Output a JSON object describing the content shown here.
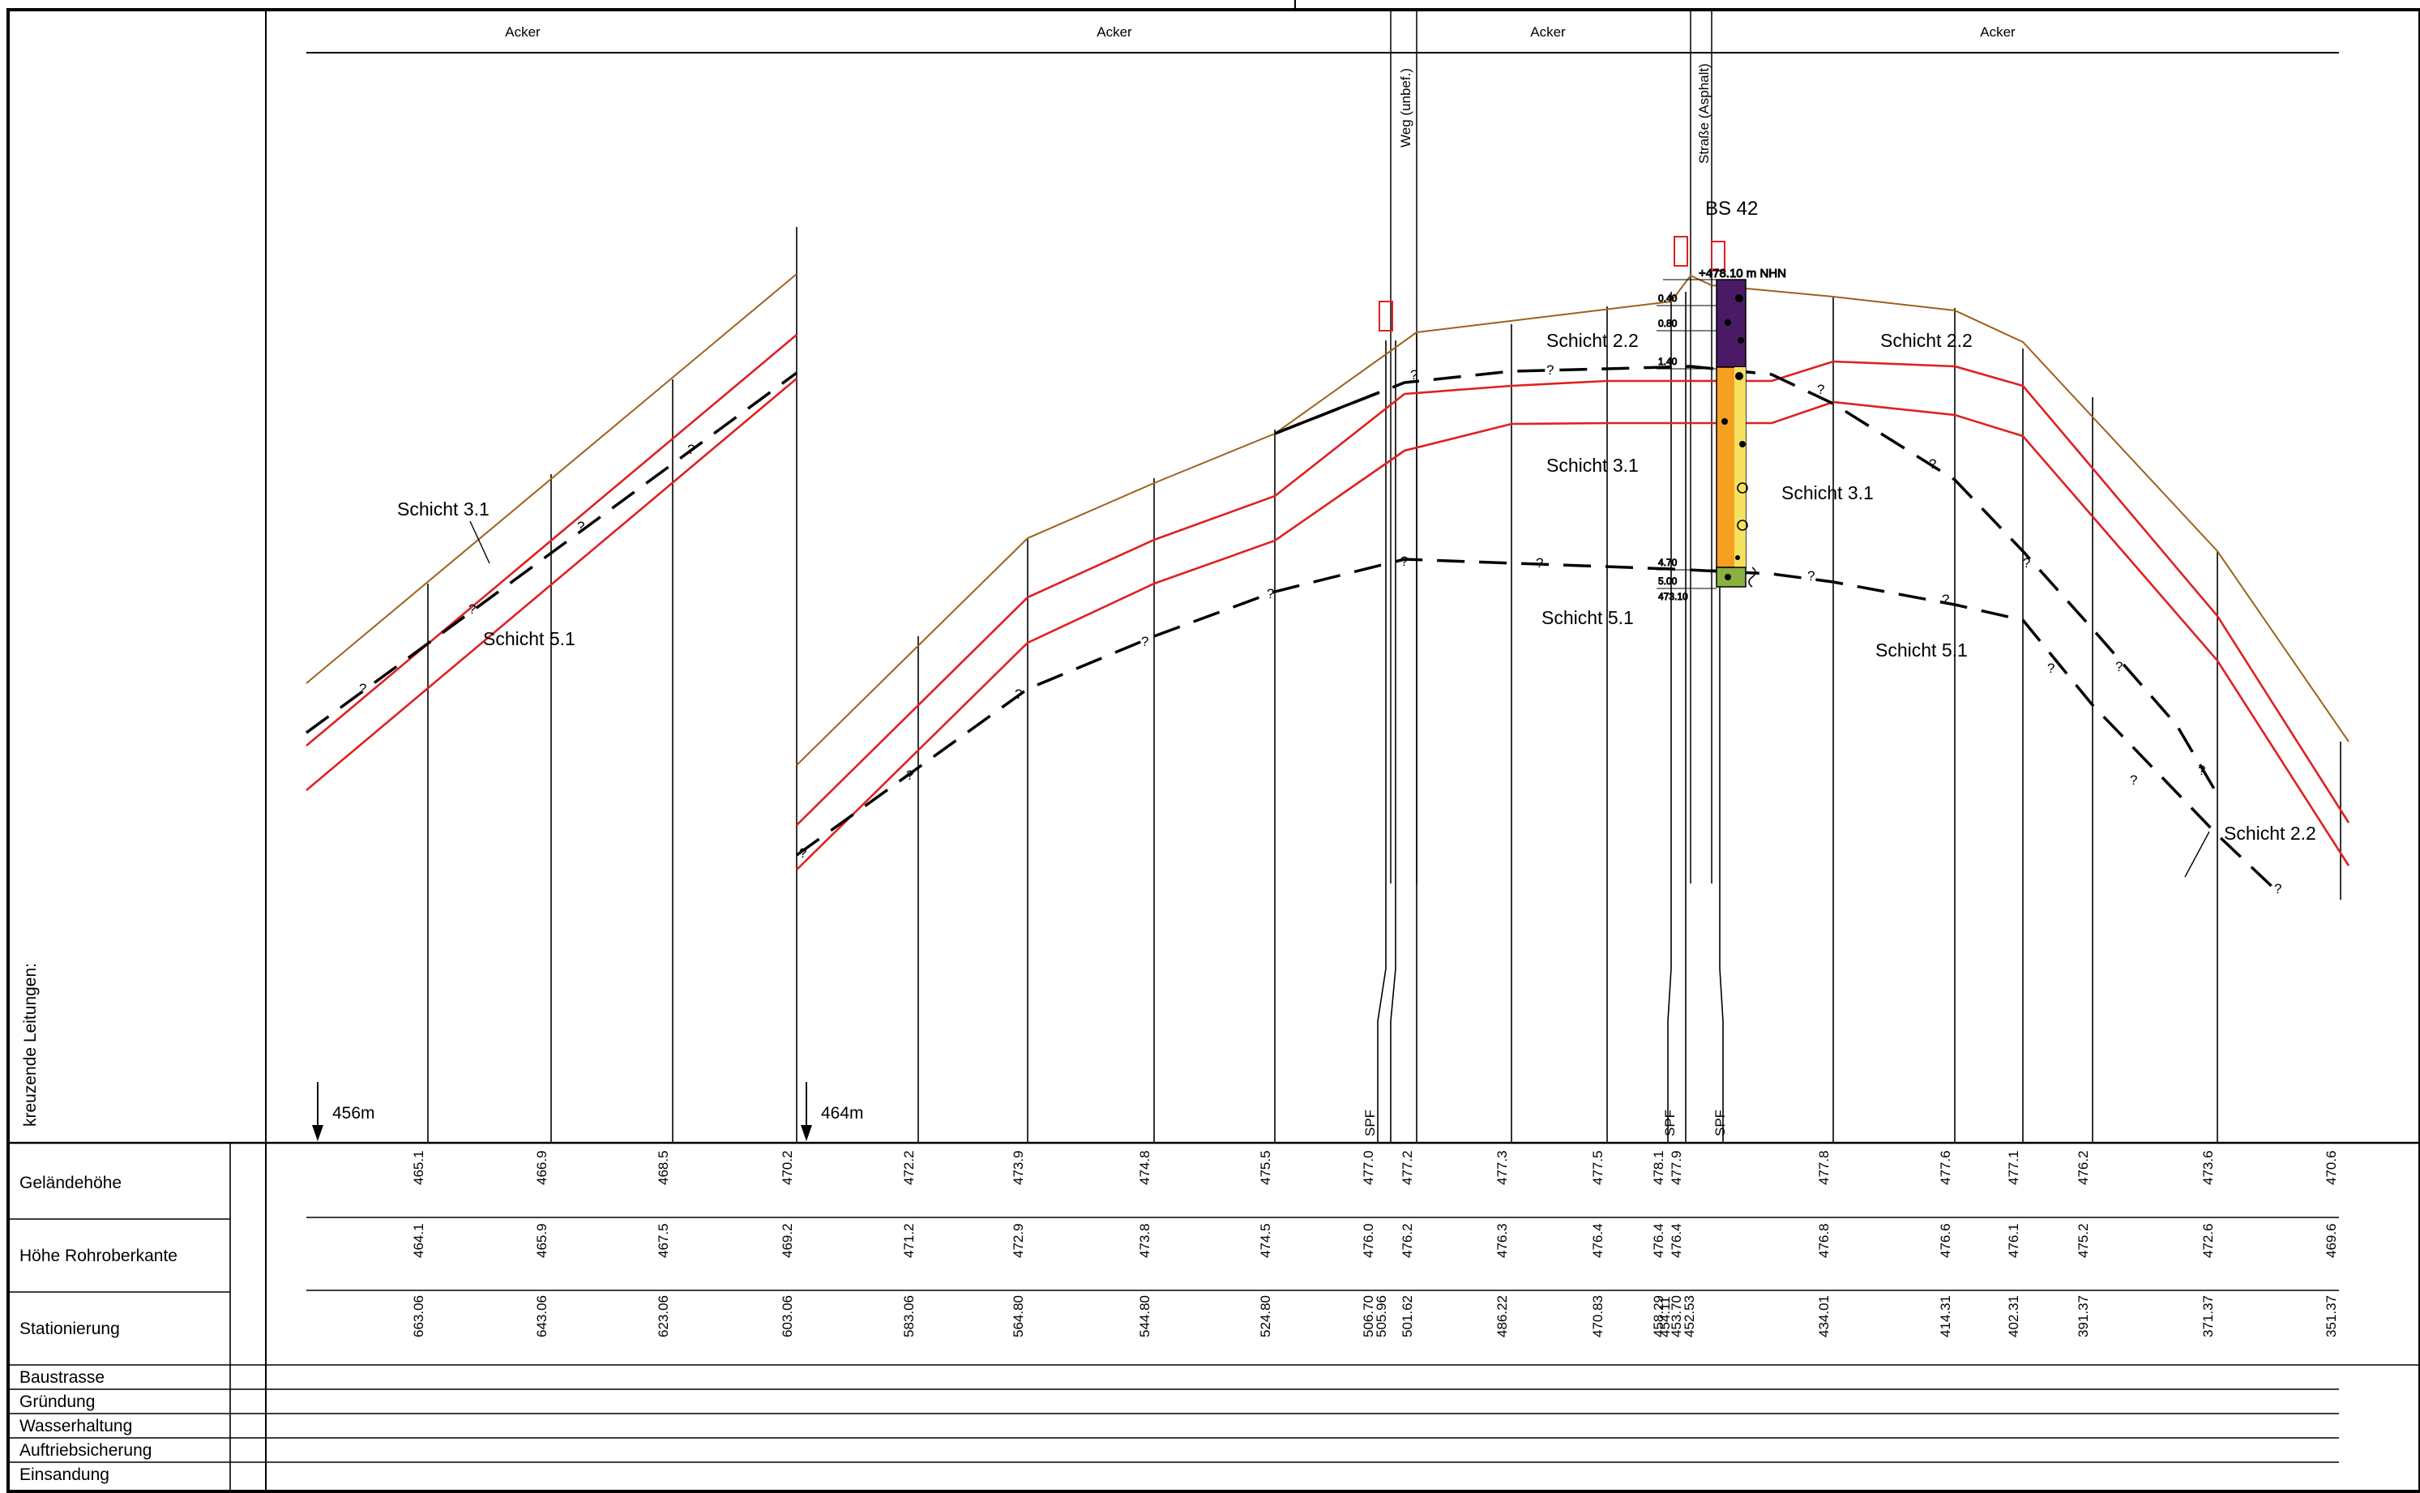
{
  "land_use": [
    "Acker",
    "Acker",
    "Acker",
    "Acker"
  ],
  "crossings": [
    "Weg (unbef.)",
    "Straße (Asphalt)"
  ],
  "borehole": {
    "name": "BS 42",
    "elevation": "+478.10 m NHN",
    "depths": [
      "0.40",
      "0.80",
      "1.40",
      "4.70",
      "5.00",
      "473.10"
    ]
  },
  "layers": [
    "Schicht 3.1",
    "Schicht 5.1",
    "Schicht 2.2",
    "Schicht 3.1",
    "Schicht 5.1",
    "Schicht 2.2",
    "Schicht 3.1",
    "Schicht 5.1",
    "Schicht 2.2"
  ],
  "query_mark": "?",
  "section_markers": [
    "456m",
    "464m"
  ],
  "crossing_lines_label": "kreuzende Leitungen:",
  "spf_label": "SPF",
  "row_labels": [
    "Geländehöhe",
    "Höhe Rohroberkante",
    "Stationierung",
    "Baustrasse",
    "Gründung",
    "Wasserhaltung",
    "Auftriebsicherung",
    "Einsandung"
  ],
  "stations": [
    {
      "g": "465.1",
      "r": "464.1",
      "s": "663.06"
    },
    {
      "g": "466.9",
      "r": "465.9",
      "s": "643.06"
    },
    {
      "g": "468.5",
      "r": "467.5",
      "s": "623.06"
    },
    {
      "g": "470.2",
      "r": "469.2",
      "s": "603.06"
    },
    {
      "g": "472.2",
      "r": "471.2",
      "s": "583.06"
    },
    {
      "g": "473.9",
      "r": "472.9",
      "s": "564.80"
    },
    {
      "g": "474.8",
      "r": "473.8",
      "s": "544.80"
    },
    {
      "g": "475.5",
      "r": "474.5",
      "s": "524.80"
    },
    {
      "g": "477.0",
      "r": "476.0",
      "s": "506.70"
    },
    {
      "g": "",
      "r": "",
      "s": "505.96"
    },
    {
      "g": "477.2",
      "r": "476.2",
      "s": "501.62"
    },
    {
      "g": "477.3",
      "r": "476.3",
      "s": "486.22"
    },
    {
      "g": "477.5",
      "r": "476.4",
      "s": "470.83"
    },
    {
      "g": "478.1",
      "r": "476.4",
      "s": "458.29"
    },
    {
      "g": "",
      "r": "",
      "s": "454.11"
    },
    {
      "g": "477.9",
      "r": "476.4",
      "s": "453.70"
    },
    {
      "g": "",
      "r": "",
      "s": "452.53"
    },
    {
      "g": "477.8",
      "r": "476.8",
      "s": "434.01"
    },
    {
      "g": "477.6",
      "r": "476.6",
      "s": "414.31"
    },
    {
      "g": "477.1",
      "r": "476.1",
      "s": "402.31"
    },
    {
      "g": "476.2",
      "r": "475.2",
      "s": "391.37"
    },
    {
      "g": "473.6",
      "r": "472.6",
      "s": "371.37"
    },
    {
      "g": "470.6",
      "r": "469.6",
      "s": "351.37"
    }
  ],
  "colors": {
    "terrain": "#a0601c",
    "pipe": "#e02020",
    "boundary": "#000000",
    "frame": "#000000"
  }
}
